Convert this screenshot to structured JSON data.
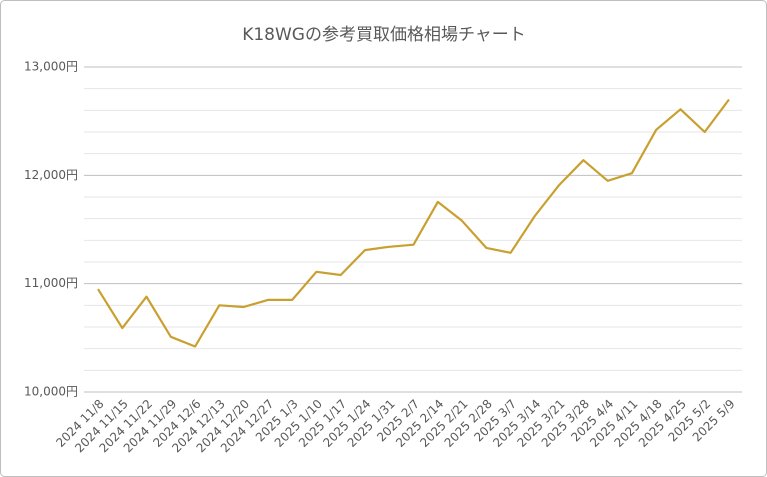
{
  "chart_data": {
    "type": "line",
    "title": "K18WGの参考買取価格相場チャート",
    "categories": [
      "2024 11/8",
      "2024 11/15",
      "2024 11/22",
      "2024 11/29",
      "2024 12/6",
      "2024 12/13",
      "2024 12/20",
      "2024 12/27",
      "2025 1/3",
      "2025 1/10",
      "2025 1/17",
      "2025 1/24",
      "2025 1/31",
      "2025 2/7",
      "2025 2/14",
      "2025 2/21",
      "2025 2/28",
      "2025 3/7",
      "2025 3/14",
      "2025 3/21",
      "2025 3/28",
      "2025 4/4",
      "2025 4/11",
      "2025 4/18",
      "2025 4/25",
      "2025 5/2",
      "2025 5/9"
    ],
    "series": [
      {
        "name": "K18WG",
        "color": "#c9a030",
        "values": [
          10950,
          10590,
          10880,
          10510,
          10420,
          10800,
          10785,
          10850,
          10850,
          11110,
          11080,
          11310,
          11340,
          11360,
          11755,
          11580,
          11330,
          11285,
          11625,
          11910,
          12140,
          11950,
          12020,
          12420,
          12610,
          12400,
          12700
        ]
      }
    ],
    "ylim": [
      10000,
      13000
    ],
    "yticks": [
      {
        "value": 10000,
        "label": "10,000円"
      },
      {
        "value": 11000,
        "label": "11,000円"
      },
      {
        "value": 12000,
        "label": "12,000円"
      },
      {
        "value": 13000,
        "label": "13,000円"
      }
    ],
    "minor_yticks": [
      10200,
      10400,
      10600,
      10800,
      11200,
      11400,
      11600,
      11800,
      12200,
      12400,
      12600,
      12800
    ],
    "grid": true
  }
}
